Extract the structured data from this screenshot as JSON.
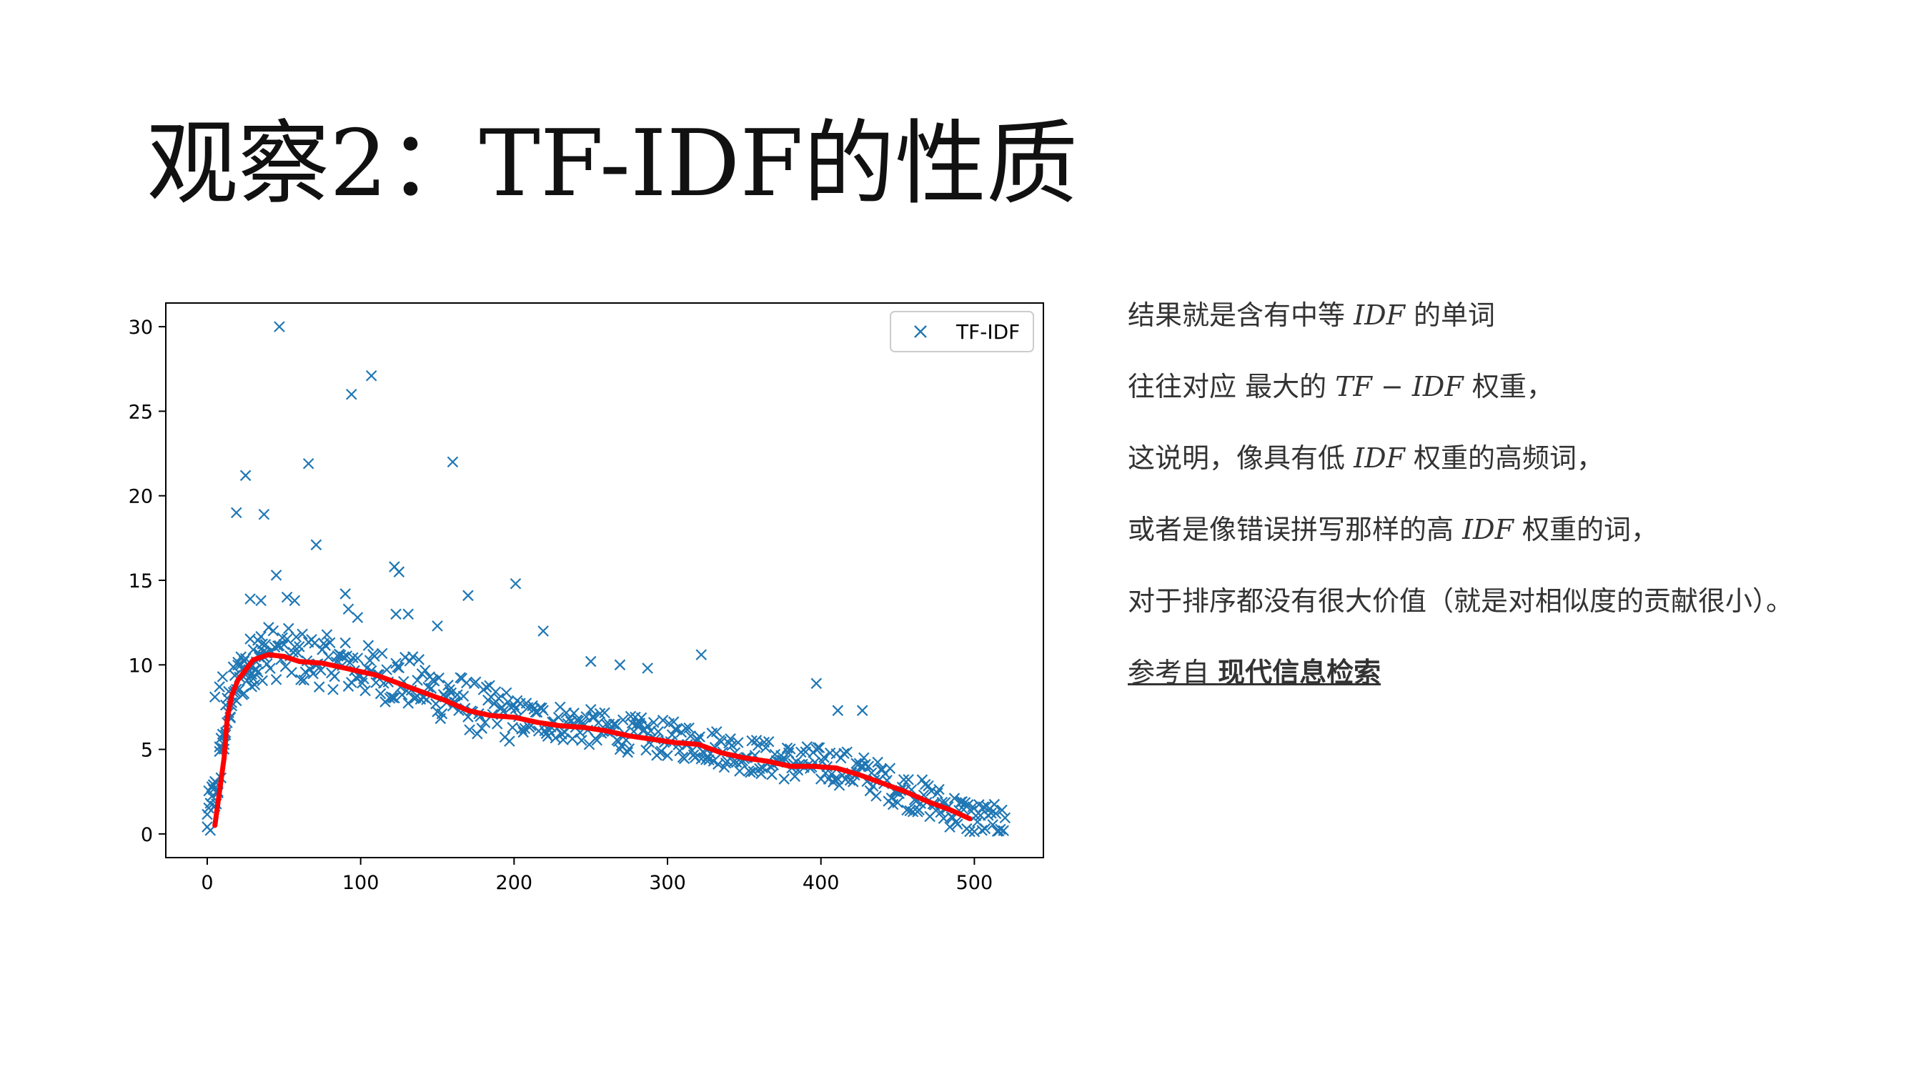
{
  "title": "观察2：TF-IDF的性质",
  "notes": {
    "line1": {
      "pre": "结果就是含有中等 ",
      "math": "IDF",
      "post": " 的单词"
    },
    "line2": {
      "pre": "往往对应 最大的 ",
      "math": "TF − IDF",
      "post": " 权重，"
    },
    "line3": {
      "pre": "这说明，像具有低 ",
      "math": "IDF",
      "post": " 权重的高频词，"
    },
    "line4": {
      "pre": "或者是像错误拼写那样的高 ",
      "math": "IDF",
      "post": " 权重的词，"
    },
    "line5": "对于排序都没有很大价值（就是对相似度的贡献很小）。",
    "ref": {
      "pre": "参考自 ",
      "link": "现代信息检索"
    }
  },
  "colors": {
    "scatter": "#1f77b4",
    "trend": "#ff0000"
  },
  "chart_data": {
    "type": "scatter",
    "legend": {
      "label": "TF-IDF",
      "marker": "x",
      "placement": "top-right"
    },
    "xlim": [
      -27,
      545
    ],
    "ylim": [
      -1.4,
      31.4
    ],
    "xticks": [
      0,
      100,
      200,
      300,
      400,
      500
    ],
    "yticks": [
      0,
      5,
      10,
      15,
      20,
      25,
      30
    ],
    "grid": false,
    "highlighted_points": [
      {
        "x": 47,
        "y": 30
      },
      {
        "x": 107,
        "y": 27.1
      },
      {
        "x": 94,
        "y": 26
      },
      {
        "x": 160,
        "y": 22
      },
      {
        "x": 66,
        "y": 21.9
      },
      {
        "x": 25,
        "y": 21.2
      },
      {
        "x": 19,
        "y": 19
      },
      {
        "x": 37,
        "y": 18.9
      },
      {
        "x": 71,
        "y": 17.1
      },
      {
        "x": 122,
        "y": 15.8
      },
      {
        "x": 125,
        "y": 15.5
      },
      {
        "x": 45,
        "y": 15.3
      },
      {
        "x": 201,
        "y": 14.8
      },
      {
        "x": 90,
        "y": 14.2
      },
      {
        "x": 170,
        "y": 14.1
      },
      {
        "x": 28,
        "y": 13.9
      },
      {
        "x": 35,
        "y": 13.8
      },
      {
        "x": 52,
        "y": 14
      },
      {
        "x": 57,
        "y": 13.8
      },
      {
        "x": 92,
        "y": 13.3
      },
      {
        "x": 123,
        "y": 13
      },
      {
        "x": 131,
        "y": 13
      },
      {
        "x": 98,
        "y": 12.8
      },
      {
        "x": 150,
        "y": 12.3
      },
      {
        "x": 219,
        "y": 12
      },
      {
        "x": 322,
        "y": 10.6
      },
      {
        "x": 397,
        "y": 8.9
      },
      {
        "x": 427,
        "y": 7.3
      },
      {
        "x": 411,
        "y": 7.3
      },
      {
        "x": 287,
        "y": 9.8
      },
      {
        "x": 269,
        "y": 10
      },
      {
        "x": 250,
        "y": 10.2
      },
      {
        "x": 5,
        "y": 8.1
      },
      {
        "x": 8,
        "y": 8.7
      },
      {
        "x": 10,
        "y": 9.3
      },
      {
        "x": 12,
        "y": 6
      }
    ],
    "scatter_bulk": {
      "x_range": [
        0,
        520
      ],
      "description_free": true,
      "trend_anchor_points": [
        {
          "x": 0,
          "y": 0.5
        },
        {
          "x": 5,
          "y": 2
        },
        {
          "x": 10,
          "y": 5
        },
        {
          "x": 15,
          "y": 7.8
        },
        {
          "x": 22,
          "y": 9.2
        },
        {
          "x": 30,
          "y": 10.2
        },
        {
          "x": 40,
          "y": 10.6
        },
        {
          "x": 60,
          "y": 10.3
        },
        {
          "x": 80,
          "y": 10
        },
        {
          "x": 100,
          "y": 9.6
        },
        {
          "x": 130,
          "y": 8.9
        },
        {
          "x": 160,
          "y": 7.9
        },
        {
          "x": 180,
          "y": 7.1
        },
        {
          "x": 200,
          "y": 6.8
        },
        {
          "x": 230,
          "y": 6.5
        },
        {
          "x": 260,
          "y": 6
        },
        {
          "x": 290,
          "y": 5.6
        },
        {
          "x": 320,
          "y": 5.3
        },
        {
          "x": 350,
          "y": 4.6
        },
        {
          "x": 380,
          "y": 4.1
        },
        {
          "x": 410,
          "y": 3.9
        },
        {
          "x": 430,
          "y": 3.4
        },
        {
          "x": 450,
          "y": 2.6
        },
        {
          "x": 470,
          "y": 1.9
        },
        {
          "x": 485,
          "y": 1.3
        },
        {
          "x": 497,
          "y": 0.9
        }
      ]
    },
    "trend_line": [
      {
        "x": 5,
        "y": 0.5
      },
      {
        "x": 8,
        "y": 2.5
      },
      {
        "x": 11,
        "y": 4.5
      },
      {
        "x": 13,
        "y": 6.8
      },
      {
        "x": 16,
        "y": 8.2
      },
      {
        "x": 20,
        "y": 9.1
      },
      {
        "x": 25,
        "y": 9.7
      },
      {
        "x": 30,
        "y": 10.3
      },
      {
        "x": 40,
        "y": 10.6
      },
      {
        "x": 50,
        "y": 10.5
      },
      {
        "x": 60,
        "y": 10.2
      },
      {
        "x": 75,
        "y": 10.1
      },
      {
        "x": 90,
        "y": 9.8
      },
      {
        "x": 100,
        "y": 9.6
      },
      {
        "x": 110,
        "y": 9.4
      },
      {
        "x": 125,
        "y": 8.9
      },
      {
        "x": 140,
        "y": 8.4
      },
      {
        "x": 155,
        "y": 7.9
      },
      {
        "x": 170,
        "y": 7.3
      },
      {
        "x": 185,
        "y": 7.0
      },
      {
        "x": 200,
        "y": 6.9
      },
      {
        "x": 215,
        "y": 6.6
      },
      {
        "x": 230,
        "y": 6.4
      },
      {
        "x": 245,
        "y": 6.3
      },
      {
        "x": 260,
        "y": 6.1
      },
      {
        "x": 275,
        "y": 5.8
      },
      {
        "x": 290,
        "y": 5.6
      },
      {
        "x": 305,
        "y": 5.4
      },
      {
        "x": 320,
        "y": 5.3
      },
      {
        "x": 335,
        "y": 4.8
      },
      {
        "x": 350,
        "y": 4.5
      },
      {
        "x": 365,
        "y": 4.3
      },
      {
        "x": 380,
        "y": 4.0
      },
      {
        "x": 395,
        "y": 4.0
      },
      {
        "x": 410,
        "y": 3.9
      },
      {
        "x": 425,
        "y": 3.5
      },
      {
        "x": 440,
        "y": 3.0
      },
      {
        "x": 455,
        "y": 2.5
      },
      {
        "x": 470,
        "y": 1.9
      },
      {
        "x": 485,
        "y": 1.4
      },
      {
        "x": 497,
        "y": 0.9
      }
    ]
  }
}
